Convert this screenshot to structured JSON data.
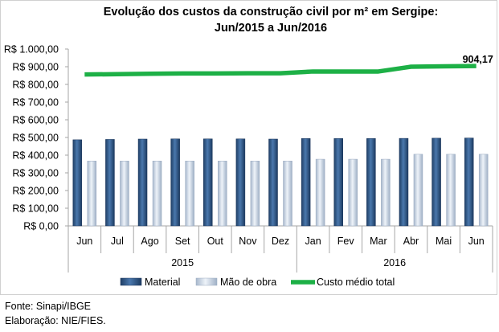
{
  "chart_data": {
    "type": "bar",
    "title_line1": "Evolução dos custos da construção civil por m² em Sergipe:",
    "title_line2": "Jun/2015 a Jun/2016",
    "categories": [
      "Jun",
      "Jul",
      "Ago",
      "Set",
      "Out",
      "Nov",
      "Dez",
      "Jan",
      "Fev",
      "Mar",
      "Abr",
      "Mai",
      "Jun"
    ],
    "groups": [
      {
        "label": "2015",
        "from": 0,
        "to": 6
      },
      {
        "label": "2016",
        "from": 7,
        "to": 12
      }
    ],
    "ylim": [
      0,
      1000
    ],
    "ystep": 100,
    "ytick_labels": [
      "R$ 0,00",
      "R$ 100,00",
      "R$ 200,00",
      "R$ 300,00",
      "R$ 400,00",
      "R$ 500,00",
      "R$ 600,00",
      "R$ 700,00",
      "R$ 800,00",
      "R$ 900,00",
      "R$ 1.000,00"
    ],
    "series": [
      {
        "name": "Material",
        "kind": "bar",
        "color": "#2e5a8e",
        "values": [
          487,
          489,
          491,
          492,
          492,
          492,
          491,
          494,
          494,
          494,
          495,
          496,
          497
        ]
      },
      {
        "name": "Mão de obra",
        "kind": "bar",
        "color": "#c6d4e6",
        "values": [
          367,
          367,
          367,
          367,
          367,
          367,
          367,
          377,
          377,
          377,
          405,
          405,
          405
        ]
      },
      {
        "name": "Custo médio total",
        "kind": "line",
        "color": "#1db046",
        "values": [
          856,
          858,
          860,
          862,
          862,
          863,
          863,
          873,
          873,
          873,
          900,
          902,
          904.17
        ]
      }
    ],
    "data_label": {
      "text": "904,17",
      "series": 2,
      "index": 12
    },
    "legend_position": "bottom",
    "grid": false
  },
  "footer": {
    "source": "Fonte: Sinapi/IBGE",
    "credit": "Elaboração: NIE/FIES."
  }
}
